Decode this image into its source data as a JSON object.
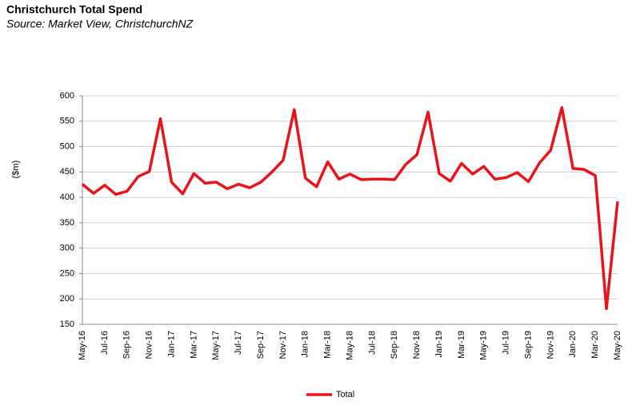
{
  "chart_data": {
    "type": "line",
    "title": "Christchurch Total Spend",
    "subtitle": "Source: Market View, ChristchurchNZ",
    "y_label": "($m)",
    "categories": [
      "May-16",
      null,
      "Jul-16",
      null,
      "Sep-16",
      null,
      "Nov-16",
      null,
      "Jan-17",
      null,
      "Mar-17",
      null,
      "May-17",
      null,
      "Jul-17",
      null,
      "Sep-17",
      null,
      "Nov-17",
      null,
      "Jan-18",
      null,
      "Mar-18",
      null,
      "May-18",
      null,
      "Jul-18",
      null,
      "Sep-18",
      null,
      "Nov-18",
      null,
      "Jan-19",
      null,
      "Mar-19",
      null,
      "May-19",
      null,
      "Jul-19",
      null,
      "Sep-19",
      null,
      "Nov-19",
      null,
      "Jan-20",
      null,
      "Mar-20",
      null,
      "May-20"
    ],
    "series": [
      {
        "name": "Total",
        "color": "#e8141c",
        "values": [
          426,
          408,
          424,
          406,
          412,
          441,
          451,
          555,
          430,
          407,
          447,
          428,
          430,
          417,
          426,
          419,
          430,
          450,
          473,
          573,
          438,
          421,
          470,
          436,
          446,
          435,
          436,
          436,
          435,
          465,
          484,
          568,
          447,
          432,
          467,
          446,
          461,
          436,
          439,
          449,
          431,
          468,
          493,
          577,
          457,
          455,
          443,
          181,
          392
        ]
      }
    ],
    "ylim": [
      150,
      600
    ],
    "yticks": [
      150,
      200,
      250,
      300,
      350,
      400,
      450,
      500,
      550,
      600
    ],
    "grid": true,
    "legend": "bottom"
  }
}
